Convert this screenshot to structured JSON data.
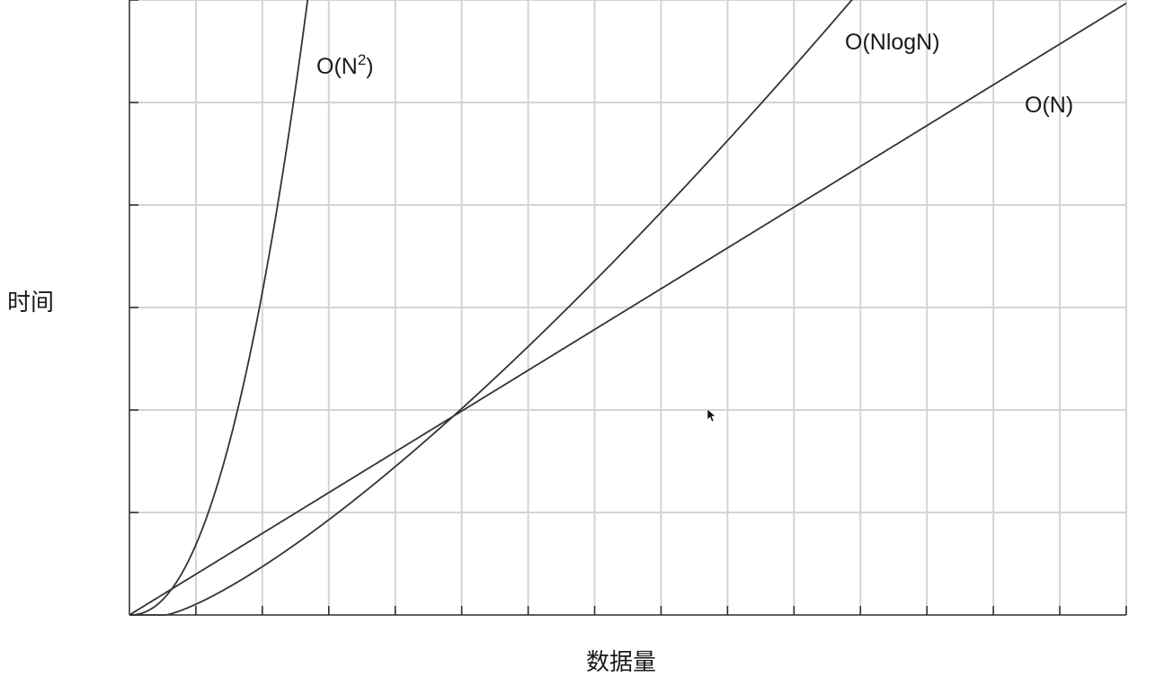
{
  "chart_data": {
    "type": "line",
    "title": "",
    "xlabel": "数据量",
    "ylabel": "时间",
    "grid": true,
    "legend": "none",
    "x_gridlines": 15,
    "y_gridlines": 6,
    "series": [
      {
        "name": "O(N²)",
        "label_base": "O(N",
        "label_sup": "2",
        "label_end": ")",
        "function": "quadratic"
      },
      {
        "name": "O(NlogN)",
        "label_base": "O(NlogN)",
        "label_sup": "",
        "label_end": "",
        "function": "nlogn"
      },
      {
        "name": "O(N)",
        "label_base": "O(N)",
        "label_sup": "",
        "label_end": "",
        "function": "linear"
      }
    ],
    "annotations": [
      {
        "text": "O(N²)",
        "series": "O(N²)"
      },
      {
        "text": "O(NlogN)",
        "series": "O(NlogN)"
      },
      {
        "text": "O(N)",
        "series": "O(N)"
      }
    ]
  },
  "colors": {
    "curve": "#333333",
    "grid": "#d4d4d4",
    "axis": "#2a2a2a",
    "text": "#1a1a1a"
  },
  "icons": {
    "cursor": "mouse-pointer-icon"
  }
}
